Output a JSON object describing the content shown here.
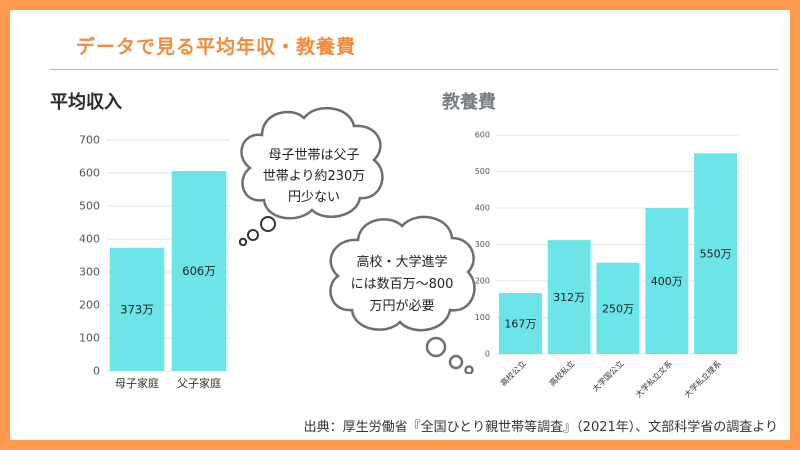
{
  "page_title": "データで見る平均年収・教養費",
  "source_note": "出典：厚生労働省『全国ひとり親世帯等調査』（2021年）、文部科学省の調査より",
  "colors": {
    "accent": "#ff9a4d",
    "bar": "#6ce5e8"
  },
  "chart_data": [
    {
      "type": "bar",
      "title": "平均収入",
      "categories": [
        "母子家庭",
        "父子家庭"
      ],
      "values": [
        373,
        606
      ],
      "value_labels": [
        "373万",
        "606万"
      ],
      "ylim": [
        0,
        700
      ],
      "yticks": [
        0,
        100,
        200,
        300,
        400,
        500,
        600,
        700
      ],
      "grid": true,
      "legend": "none"
    },
    {
      "type": "bar",
      "title": "教養費",
      "categories": [
        "高校公立",
        "高校私立",
        "大学国公立",
        "大学私立文系",
        "大学私立理系"
      ],
      "values": [
        167,
        312,
        250,
        400,
        550
      ],
      "value_labels": [
        "167万",
        "312万",
        "250万",
        "400万",
        "550万"
      ],
      "ylim": [
        0,
        600
      ],
      "yticks": [
        0,
        100,
        200,
        300,
        400,
        500,
        600
      ],
      "grid": true,
      "legend": "none"
    }
  ],
  "callouts": [
    {
      "lines": [
        "母子世帯は父子",
        "世帯より約230万",
        "円少ない"
      ]
    },
    {
      "lines": [
        "高校・大学進学",
        "には数百万〜800",
        "万円が必要"
      ]
    }
  ]
}
